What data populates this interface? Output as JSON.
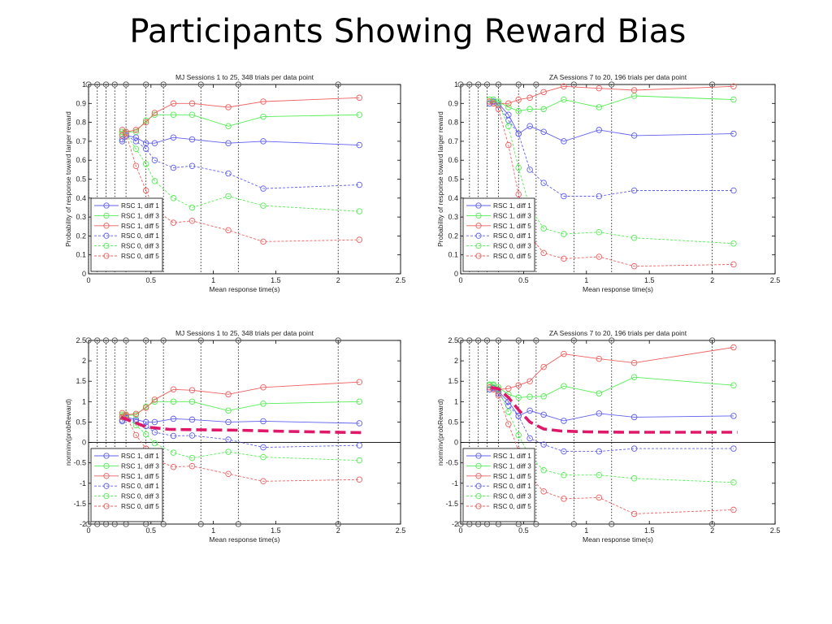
{
  "slide_title": "Participants Showing Reward Bias",
  "colors": {
    "blue": "#6060ee",
    "green": "#55ee55",
    "red": "#ee6060",
    "marker": "#555555",
    "trend": "#e0186a"
  },
  "chart_data": [
    {
      "type": "line",
      "title": "MJ Sessions 1 to 25, 348 trials per data point",
      "xlabel": "Mean response time(s)",
      "ylabel": "Probability of response toward larger reward",
      "xlim": [
        0,
        2.5
      ],
      "ylim": [
        0,
        1
      ],
      "xticks": [
        0,
        0.5,
        1,
        1.5,
        2,
        2.5
      ],
      "xtick_labels": [
        "0",
        "0.5",
        "1",
        "1.5",
        "2",
        "2.5"
      ],
      "yticks": [
        0,
        0.1,
        0.2,
        0.3,
        0.4,
        0.5,
        0.6,
        0.7,
        0.8,
        0.9,
        1
      ],
      "ytick_labels": [
        "0",
        "0.1",
        "0.2",
        "0.3",
        "0.4",
        "0.5",
        "0.6",
        "0.7",
        "0.8",
        "0.9",
        "1"
      ],
      "markers_x": [
        0,
        0.07,
        0.14,
        0.21,
        0.3,
        0.46,
        0.6,
        0.9,
        1.2,
        2
      ],
      "markers_y": 1,
      "grid": false,
      "legend": "bottom-left",
      "series": [
        {
          "name": "RSC 1, diff 1",
          "color": "blue",
          "dash": false,
          "x": [
            0.27,
            0.3,
            0.38,
            0.46,
            0.53,
            0.68,
            0.83,
            1.12,
            1.4,
            2.17
          ],
          "y": [
            0.71,
            0.73,
            0.72,
            0.69,
            0.69,
            0.72,
            0.71,
            0.69,
            0.7,
            0.68
          ]
        },
        {
          "name": "RSC 1, diff 3",
          "color": "green",
          "dash": false,
          "x": [
            0.27,
            0.3,
            0.38,
            0.46,
            0.53,
            0.68,
            0.83,
            1.12,
            1.4,
            2.17
          ],
          "y": [
            0.75,
            0.75,
            0.75,
            0.81,
            0.84,
            0.84,
            0.84,
            0.78,
            0.83,
            0.84
          ]
        },
        {
          "name": "RSC 1, diff 5",
          "color": "red",
          "dash": false,
          "x": [
            0.27,
            0.3,
            0.38,
            0.46,
            0.53,
            0.68,
            0.83,
            1.12,
            1.4,
            2.17
          ],
          "y": [
            0.76,
            0.75,
            0.76,
            0.8,
            0.85,
            0.9,
            0.9,
            0.88,
            0.91,
            0.93
          ]
        },
        {
          "name": "RSC 0, diff 1",
          "color": "blue",
          "dash": true,
          "x": [
            0.27,
            0.3,
            0.38,
            0.46,
            0.53,
            0.68,
            0.83,
            1.12,
            1.4,
            2.17
          ],
          "y": [
            0.7,
            0.73,
            0.7,
            0.66,
            0.6,
            0.56,
            0.57,
            0.53,
            0.45,
            0.47
          ]
        },
        {
          "name": "RSC 0, diff 3",
          "color": "green",
          "dash": true,
          "x": [
            0.27,
            0.3,
            0.38,
            0.46,
            0.53,
            0.68,
            0.83,
            1.12,
            1.4,
            2.17
          ],
          "y": [
            0.74,
            0.74,
            0.66,
            0.58,
            0.49,
            0.4,
            0.35,
            0.41,
            0.36,
            0.33
          ]
        },
        {
          "name": "RSC 0, diff 5",
          "color": "red",
          "dash": true,
          "x": [
            0.27,
            0.3,
            0.38,
            0.46,
            0.53,
            0.68,
            0.83,
            1.12,
            1.4,
            2.17
          ],
          "y": [
            0.73,
            0.74,
            0.57,
            0.44,
            0.34,
            0.27,
            0.28,
            0.23,
            0.17,
            0.18
          ]
        }
      ]
    },
    {
      "type": "line",
      "title": "ZA Sessions 7 to 20, 196 trials per data point",
      "xlabel": "Mean response time(s)",
      "ylabel": "Probability of response toward larger reward",
      "xlim": [
        0,
        2.5
      ],
      "ylim": [
        0,
        1
      ],
      "xticks": [
        0,
        0.5,
        1,
        1.5,
        2,
        2.5
      ],
      "xtick_labels": [
        "0",
        "0.5",
        "1",
        "1.5",
        "2",
        "2.5"
      ],
      "yticks": [
        0,
        0.1,
        0.2,
        0.3,
        0.4,
        0.5,
        0.6,
        0.7,
        0.8,
        0.9,
        1
      ],
      "ytick_labels": [
        "0",
        "0.1",
        "0.2",
        "0.3",
        "0.4",
        "0.5",
        "0.6",
        "0.7",
        "0.8",
        "0.9",
        "1"
      ],
      "markers_x": [
        0,
        0.07,
        0.14,
        0.21,
        0.3,
        0.46,
        0.6,
        0.9,
        1.2,
        2
      ],
      "markers_y": 1,
      "grid": false,
      "legend": "bottom-left",
      "series": [
        {
          "name": "RSC 1, diff 1",
          "color": "blue",
          "dash": false,
          "x": [
            0.23,
            0.26,
            0.3,
            0.38,
            0.46,
            0.55,
            0.66,
            0.82,
            1.1,
            1.38,
            2.17
          ],
          "y": [
            0.9,
            0.91,
            0.9,
            0.84,
            0.74,
            0.78,
            0.75,
            0.7,
            0.76,
            0.73,
            0.74
          ]
        },
        {
          "name": "RSC 1, diff 3",
          "color": "green",
          "dash": false,
          "x": [
            0.23,
            0.26,
            0.3,
            0.38,
            0.46,
            0.55,
            0.66,
            0.82,
            1.1,
            1.38,
            2.17
          ],
          "y": [
            0.92,
            0.92,
            0.91,
            0.88,
            0.86,
            0.87,
            0.87,
            0.92,
            0.88,
            0.94,
            0.92
          ]
        },
        {
          "name": "RSC 1, diff 5",
          "color": "red",
          "dash": false,
          "x": [
            0.23,
            0.26,
            0.3,
            0.38,
            0.46,
            0.55,
            0.66,
            0.82,
            1.1,
            1.38,
            2.17
          ],
          "y": [
            0.91,
            0.9,
            0.9,
            0.9,
            0.92,
            0.93,
            0.96,
            0.99,
            0.98,
            0.97,
            0.99
          ]
        },
        {
          "name": "RSC 0, diff 1",
          "color": "blue",
          "dash": true,
          "x": [
            0.23,
            0.26,
            0.3,
            0.38,
            0.46,
            0.55,
            0.66,
            0.82,
            1.1,
            1.38,
            2.17
          ],
          "y": [
            0.9,
            0.91,
            0.89,
            0.81,
            0.74,
            0.55,
            0.48,
            0.41,
            0.41,
            0.44,
            0.44
          ]
        },
        {
          "name": "RSC 0, diff 3",
          "color": "green",
          "dash": true,
          "x": [
            0.23,
            0.26,
            0.3,
            0.38,
            0.46,
            0.55,
            0.66,
            0.82,
            1.1,
            1.38,
            2.17
          ],
          "y": [
            0.92,
            0.92,
            0.9,
            0.78,
            0.56,
            0.35,
            0.24,
            0.21,
            0.22,
            0.19,
            0.16
          ]
        },
        {
          "name": "RSC 0, diff 5",
          "color": "red",
          "dash": true,
          "x": [
            0.23,
            0.26,
            0.3,
            0.38,
            0.46,
            0.55,
            0.66,
            0.82,
            1.1,
            1.38,
            2.17
          ],
          "y": [
            0.91,
            0.9,
            0.87,
            0.68,
            0.42,
            0.2,
            0.11,
            0.08,
            0.09,
            0.04,
            0.05
          ]
        }
      ]
    },
    {
      "type": "line",
      "title": "MJ Sessions 1 to 25, 348 trials per data point",
      "xlabel": "Mean response time(s)",
      "ylabel": "norminv(probReward)",
      "xlim": [
        0,
        2.5
      ],
      "ylim": [
        -2,
        2.5
      ],
      "xticks": [
        0,
        0.5,
        1,
        1.5,
        2,
        2.5
      ],
      "xtick_labels": [
        "0",
        "0.5",
        "1",
        "1.5",
        "2",
        "2.5"
      ],
      "yticks": [
        -2,
        -1.5,
        -1,
        -0.5,
        0,
        0.5,
        1,
        1.5,
        2,
        2.5
      ],
      "ytick_labels": [
        "-2",
        "-1.5",
        "-1",
        "-0.5",
        "0",
        "0.5",
        "1",
        "1.5",
        "2",
        "2.5"
      ],
      "zero_line": true,
      "markers_x": [
        0,
        0.07,
        0.14,
        0.21,
        0.3,
        0.46,
        0.6,
        0.9,
        1.2,
        2
      ],
      "markers_y_top": 2.5,
      "markers_y_bottom": -2,
      "grid": false,
      "legend": "bottom-left",
      "trend": {
        "x": [
          0.26,
          0.46,
          0.65,
          0.9,
          1.2,
          1.6,
          2.2
        ],
        "y": [
          0.62,
          0.38,
          0.32,
          0.31,
          0.3,
          0.27,
          0.24
        ]
      },
      "series": [
        {
          "name": "RSC 1, diff 1",
          "color": "blue",
          "dash": false,
          "x": [
            0.27,
            0.3,
            0.38,
            0.46,
            0.53,
            0.68,
            0.83,
            1.12,
            1.4,
            2.17
          ],
          "y": [
            0.55,
            0.62,
            0.56,
            0.5,
            0.5,
            0.58,
            0.56,
            0.5,
            0.52,
            0.47
          ]
        },
        {
          "name": "RSC 1, diff 3",
          "color": "green",
          "dash": false,
          "x": [
            0.27,
            0.3,
            0.38,
            0.46,
            0.53,
            0.68,
            0.83,
            1.12,
            1.4,
            2.17
          ],
          "y": [
            0.68,
            0.67,
            0.67,
            0.88,
            1.0,
            1.0,
            1.0,
            0.78,
            0.95,
            1.0
          ]
        },
        {
          "name": "RSC 1, diff 5",
          "color": "red",
          "dash": false,
          "x": [
            0.27,
            0.3,
            0.38,
            0.46,
            0.53,
            0.68,
            0.83,
            1.12,
            1.4,
            2.17
          ],
          "y": [
            0.72,
            0.68,
            0.7,
            0.85,
            1.05,
            1.3,
            1.28,
            1.18,
            1.35,
            1.48
          ]
        },
        {
          "name": "RSC 0, diff 1",
          "color": "blue",
          "dash": true,
          "x": [
            0.27,
            0.3,
            0.38,
            0.46,
            0.53,
            0.68,
            0.83,
            1.12,
            1.4,
            2.17
          ],
          "y": [
            0.52,
            0.6,
            0.52,
            0.4,
            0.25,
            0.16,
            0.17,
            0.07,
            -0.12,
            -0.07
          ]
        },
        {
          "name": "RSC 0, diff 3",
          "color": "green",
          "dash": true,
          "x": [
            0.27,
            0.3,
            0.38,
            0.46,
            0.53,
            0.68,
            0.83,
            1.12,
            1.4,
            2.17
          ],
          "y": [
            0.64,
            0.64,
            0.42,
            0.2,
            -0.02,
            -0.25,
            -0.38,
            -0.23,
            -0.36,
            -0.44
          ]
        },
        {
          "name": "RSC 0, diff 5",
          "color": "red",
          "dash": true,
          "x": [
            0.27,
            0.3,
            0.38,
            0.46,
            0.53,
            0.68,
            0.83,
            1.12,
            1.4,
            2.17
          ],
          "y": [
            0.62,
            0.64,
            0.18,
            -0.15,
            -0.42,
            -0.6,
            -0.58,
            -0.77,
            -0.95,
            -0.91
          ]
        }
      ]
    },
    {
      "type": "line",
      "title": "ZA Sessions 7 to 20, 196 trials per data point",
      "xlabel": "Mean response time(s)",
      "ylabel": "norminv(probReward)",
      "xlim": [
        0,
        2.5
      ],
      "ylim": [
        -2,
        2.5
      ],
      "xticks": [
        0,
        0.5,
        1,
        1.5,
        2,
        2.5
      ],
      "xtick_labels": [
        "0",
        "0.5",
        "1",
        "1.5",
        "2",
        "2.5"
      ],
      "yticks": [
        -2,
        -1.5,
        -1,
        -0.5,
        0,
        0.5,
        1,
        1.5,
        2,
        2.5
      ],
      "ytick_labels": [
        "-2",
        "-1.5",
        "-1",
        "-0.5",
        "0",
        "0.5",
        "1",
        "1.5",
        "2",
        "2.5"
      ],
      "zero_line": true,
      "markers_x": [
        0,
        0.07,
        0.14,
        0.21,
        0.3,
        0.46,
        0.6,
        0.9,
        1.2,
        2
      ],
      "markers_y_top": 2.5,
      "markers_y_bottom": -2,
      "grid": false,
      "legend": "bottom-left",
      "trend": {
        "x": [
          0.24,
          0.3,
          0.38,
          0.46,
          0.55,
          0.66,
          0.8,
          1.0,
          1.3,
          1.7,
          2.2
        ],
        "y": [
          1.35,
          1.32,
          1.1,
          0.8,
          0.5,
          0.33,
          0.28,
          0.26,
          0.25,
          0.25,
          0.25
        ]
      },
      "series": [
        {
          "name": "RSC 1, diff 1",
          "color": "blue",
          "dash": false,
          "x": [
            0.23,
            0.26,
            0.3,
            0.38,
            0.46,
            0.55,
            0.66,
            0.82,
            1.1,
            1.38,
            2.17
          ],
          "y": [
            1.3,
            1.35,
            1.25,
            1.0,
            0.65,
            0.78,
            0.68,
            0.53,
            0.71,
            0.62,
            0.65
          ]
        },
        {
          "name": "RSC 1, diff 3",
          "color": "green",
          "dash": false,
          "x": [
            0.23,
            0.26,
            0.3,
            0.38,
            0.46,
            0.55,
            0.66,
            0.82,
            1.1,
            1.38,
            2.17
          ],
          "y": [
            1.42,
            1.42,
            1.35,
            1.18,
            1.1,
            1.12,
            1.13,
            1.38,
            1.2,
            1.6,
            1.4
          ]
        },
        {
          "name": "RSC 1, diff 5",
          "color": "red",
          "dash": false,
          "x": [
            0.23,
            0.26,
            0.3,
            0.38,
            0.46,
            0.55,
            0.66,
            0.82,
            1.1,
            1.38,
            2.17
          ],
          "y": [
            1.35,
            1.3,
            1.3,
            1.32,
            1.4,
            1.5,
            1.85,
            2.17,
            2.05,
            1.95,
            2.33
          ]
        },
        {
          "name": "RSC 0, diff 1",
          "color": "blue",
          "dash": true,
          "x": [
            0.23,
            0.26,
            0.3,
            0.38,
            0.46,
            0.55,
            0.66,
            0.82,
            1.1,
            1.38,
            2.17
          ],
          "y": [
            1.3,
            1.33,
            1.2,
            0.9,
            0.65,
            0.1,
            -0.05,
            -0.22,
            -0.22,
            -0.15,
            -0.15
          ]
        },
        {
          "name": "RSC 0, diff 3",
          "color": "green",
          "dash": true,
          "x": [
            0.23,
            0.26,
            0.3,
            0.38,
            0.46,
            0.55,
            0.66,
            0.82,
            1.1,
            1.38,
            2.17
          ],
          "y": [
            1.4,
            1.4,
            1.3,
            0.75,
            0.18,
            -0.35,
            -0.68,
            -0.8,
            -0.8,
            -0.88,
            -0.98
          ]
        },
        {
          "name": "RSC 0, diff 5",
          "color": "red",
          "dash": true,
          "x": [
            0.23,
            0.26,
            0.3,
            0.38,
            0.46,
            0.55,
            0.66,
            0.82,
            1.1,
            1.38,
            2.17
          ],
          "y": [
            1.35,
            1.3,
            1.15,
            0.45,
            -0.2,
            -0.85,
            -1.2,
            -1.38,
            -1.35,
            -1.75,
            -1.65
          ]
        }
      ]
    }
  ]
}
